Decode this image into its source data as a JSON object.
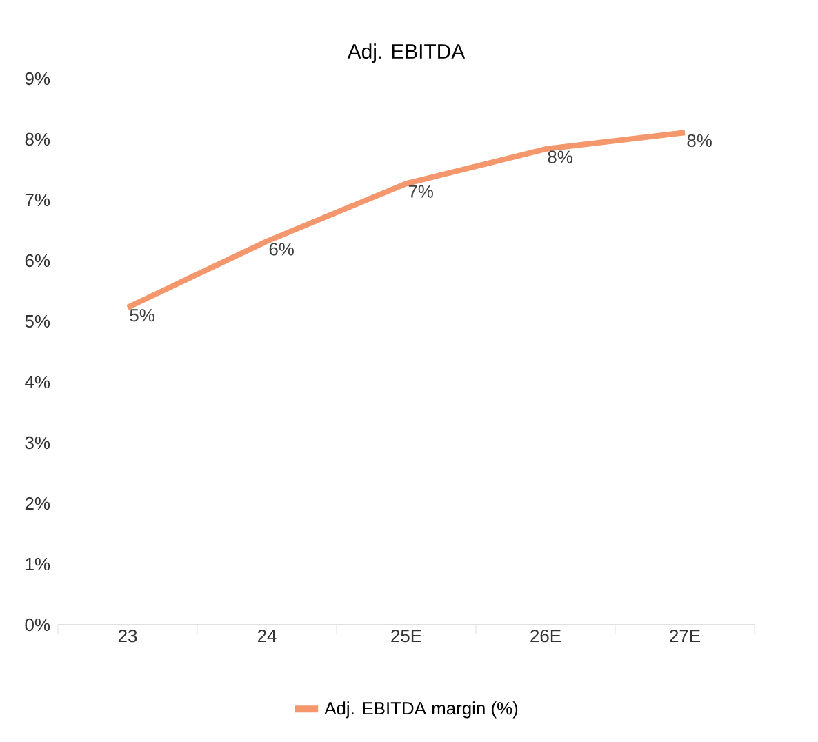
{
  "chart_data": {
    "type": "line",
    "title": "Adj. EBITDA",
    "categories": [
      "23",
      "24",
      "25E",
      "26E",
      "27E"
    ],
    "series": [
      {
        "name": "Adj. EBITDA margin (%)",
        "color": "#f4976c",
        "values": [
          5.23,
          6.32,
          7.27,
          7.84,
          8.11
        ],
        "value_labels": [
          "5%",
          "6%",
          "7%",
          "8%",
          "8%"
        ]
      }
    ],
    "ylim": [
      0,
      9
    ],
    "yticks": [
      {
        "value": 0,
        "label": "0%"
      },
      {
        "value": 1,
        "label": "1%"
      },
      {
        "value": 2,
        "label": "2%"
      },
      {
        "value": 3,
        "label": "3%"
      },
      {
        "value": 4,
        "label": "4%"
      },
      {
        "value": 5,
        "label": "5%"
      },
      {
        "value": 6,
        "label": "6%"
      },
      {
        "value": 7,
        "label": "7%"
      },
      {
        "value": 8,
        "label": "8%"
      },
      {
        "value": 9,
        "label": "9%"
      }
    ],
    "grid": false,
    "legend": "bottom",
    "marker": "none",
    "line_style": "solid"
  }
}
